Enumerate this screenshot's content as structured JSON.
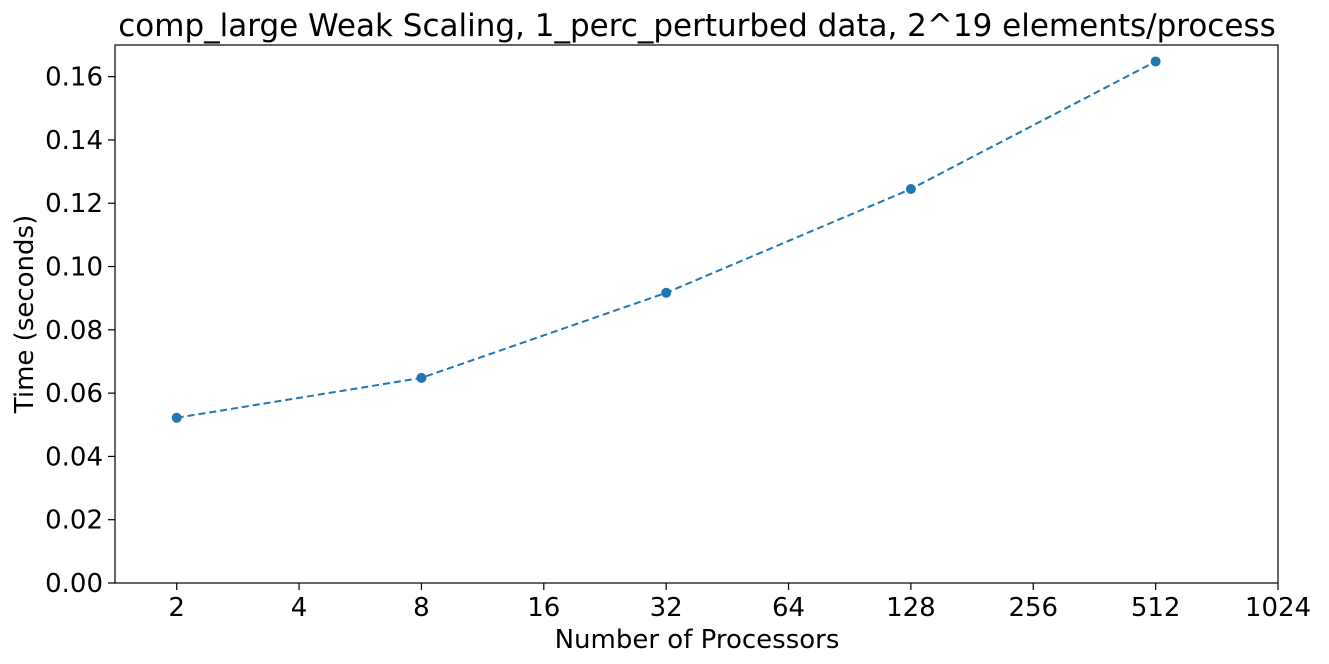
{
  "chart_data": {
    "type": "line",
    "title": "comp_large Weak Scaling, 1_perc_perturbed data, 2^19 elements/process",
    "xlabel": "Number of Processors",
    "ylabel": "Time (seconds)",
    "x_scale": "log2",
    "xlim": [
      1.41,
      1024
    ],
    "ylim": [
      0,
      0.17
    ],
    "x_ticks": [
      2,
      4,
      8,
      16,
      32,
      64,
      128,
      256,
      512,
      1024
    ],
    "x_tick_labels": [
      "2",
      "4",
      "8",
      "16",
      "32",
      "64",
      "128",
      "256",
      "512",
      "1024"
    ],
    "y_ticks": [
      0,
      0.02,
      0.04,
      0.06,
      0.08,
      0.1,
      0.12,
      0.14,
      0.16
    ],
    "y_tick_labels": [
      "0.00",
      "0.02",
      "0.04",
      "0.06",
      "0.08",
      "0.10",
      "0.12",
      "0.14",
      "0.16"
    ],
    "grid": false,
    "series": [
      {
        "color": "#1f77b4",
        "line_style": "dashed",
        "marker": "circle",
        "x": [
          2,
          8,
          32,
          128,
          512
        ],
        "y": [
          0.0522,
          0.0648,
          0.0917,
          0.1245,
          0.1648
        ]
      }
    ]
  }
}
